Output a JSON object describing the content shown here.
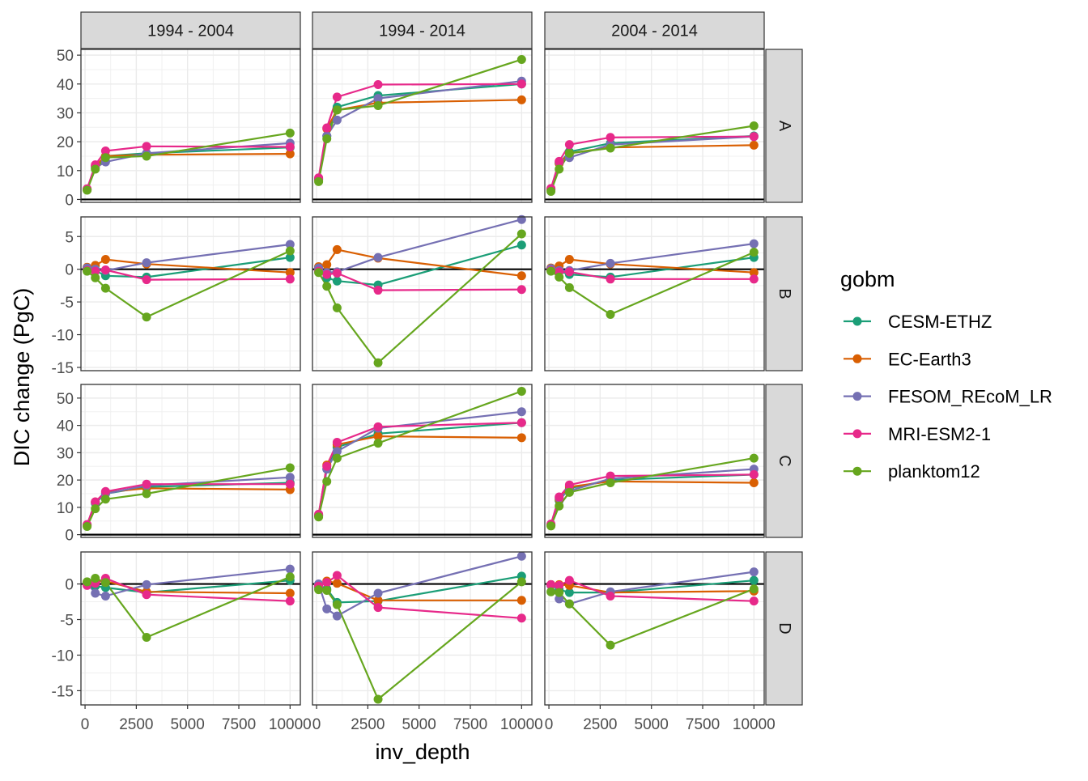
{
  "chart_data": {
    "type": "line",
    "facet_columns": [
      "1994 - 2004",
      "1994 - 2014",
      "2004 - 2014"
    ],
    "facet_rows": [
      "A",
      "B",
      "C",
      "D"
    ],
    "xlabel": "inv_depth",
    "ylabel": "DIC change (PgC)",
    "x_ticks": [
      "0",
      "2500",
      "5000",
      "7500",
      "10000"
    ],
    "xlim": [
      -200,
      10500
    ],
    "x": [
      100,
      500,
      1000,
      3000,
      10000
    ],
    "grid": true,
    "hline_y": 0,
    "legend": {
      "title": "gobm",
      "position": "right",
      "entries": [
        {
          "name": "CESM-ETHZ",
          "color": "#1B9E77"
        },
        {
          "name": "EC-Earth3",
          "color": "#D95F02"
        },
        {
          "name": "FESOM_REcoM_LR",
          "color": "#7570B3"
        },
        {
          "name": "MRI-ESM2-1",
          "color": "#E7298A"
        },
        {
          "name": "planktom12",
          "color": "#66A61E"
        }
      ]
    },
    "rows": [
      {
        "label": "A",
        "ylim": [
          -1,
          52
        ],
        "y_ticks": [
          0,
          10,
          20,
          30,
          40,
          50
        ],
        "panels": [
          {
            "column": "1994 - 2004",
            "series": [
              {
                "name": "CESM-ETHZ",
                "values": [
                  3.5,
                  11.5,
                  15,
                  16,
                  18
                ]
              },
              {
                "name": "EC-Earth3",
                "values": [
                  3.3,
                  11.5,
                  15,
                  15.5,
                  15.8
                ]
              },
              {
                "name": "FESOM_REcoM_LR",
                "values": [
                  3.5,
                  11,
                  13,
                  16,
                  19.5
                ]
              },
              {
                "name": "MRI-ESM2-1",
                "values": [
                  3.7,
                  12,
                  16.8,
                  18.4,
                  18.2
                ]
              },
              {
                "name": "planktom12",
                "values": [
                  3.2,
                  10.5,
                  14.5,
                  15,
                  23
                ]
              }
            ]
          },
          {
            "column": "1994 - 2014",
            "series": [
              {
                "name": "CESM-ETHZ",
                "values": [
                  7,
                  22,
                  32,
                  36,
                  40
                ]
              },
              {
                "name": "EC-Earth3",
                "values": [
                  6.8,
                  24.5,
                  31,
                  33.5,
                  34.5
                ]
              },
              {
                "name": "FESOM_REcoM_LR",
                "values": [
                  7.2,
                  22,
                  27.5,
                  35,
                  41
                ]
              },
              {
                "name": "MRI-ESM2-1",
                "values": [
                  7.5,
                  24.8,
                  35.5,
                  39.8,
                  40
                ]
              },
              {
                "name": "planktom12",
                "values": [
                  6.2,
                  21,
                  31,
                  32.5,
                  48.5
                ]
              }
            ]
          },
          {
            "column": "2004 - 2014",
            "series": [
              {
                "name": "CESM-ETHZ",
                "values": [
                  3.5,
                  12.5,
                  16.5,
                  19.5,
                  22
                ]
              },
              {
                "name": "EC-Earth3",
                "values": [
                  3.3,
                  12.5,
                  16,
                  18,
                  18.8
                ]
              },
              {
                "name": "FESOM_REcoM_LR",
                "values": [
                  3.6,
                  13,
                  14.5,
                  19,
                  21.8
                ]
              },
              {
                "name": "MRI-ESM2-1",
                "values": [
                  3.8,
                  13.2,
                  19,
                  21.5,
                  21.8
                ]
              },
              {
                "name": "planktom12",
                "values": [
                  2.8,
                  10.5,
                  16,
                  17.8,
                  25.5
                ]
              }
            ]
          }
        ]
      },
      {
        "label": "B",
        "ylim": [
          -15.5,
          8
        ],
        "y_ticks": [
          -15,
          -10,
          -5,
          0,
          5
        ],
        "panels": [
          {
            "column": "1994 - 2004",
            "series": [
              {
                "name": "CESM-ETHZ",
                "values": [
                  0,
                  -0.2,
                  -1,
                  -1.2,
                  1.8
                ]
              },
              {
                "name": "EC-Earth3",
                "values": [
                  0.3,
                  0.6,
                  1.5,
                  0.8,
                  -0.5
                ]
              },
              {
                "name": "FESOM_REcoM_LR",
                "values": [
                  0.2,
                  0,
                  -0.2,
                  1,
                  3.8
                ]
              },
              {
                "name": "MRI-ESM2-1",
                "values": [
                  -0.2,
                  -0.3,
                  -0.1,
                  -1.6,
                  -1.5
                ]
              },
              {
                "name": "planktom12",
                "values": [
                  -0.3,
                  -1.3,
                  -2.9,
                  -7.3,
                  2.8
                ]
              }
            ]
          },
          {
            "column": "1994 - 2014",
            "series": [
              {
                "name": "CESM-ETHZ",
                "values": [
                  0,
                  -1.3,
                  -1.8,
                  -2.4,
                  3.7
                ]
              },
              {
                "name": "EC-Earth3",
                "values": [
                  0.4,
                  0.7,
                  3,
                  1.7,
                  -1
                ]
              },
              {
                "name": "FESOM_REcoM_LR",
                "values": [
                  0.2,
                  -0.5,
                  -0.4,
                  1.8,
                  7.6
                ]
              },
              {
                "name": "MRI-ESM2-1",
                "values": [
                  -0.3,
                  -0.8,
                  -0.6,
                  -3.2,
                  -3.1
                ]
              },
              {
                "name": "planktom12",
                "values": [
                  -0.5,
                  -2.6,
                  -5.9,
                  -14.3,
                  5.4
                ]
              }
            ]
          },
          {
            "column": "2004 - 2014",
            "series": [
              {
                "name": "CESM-ETHZ",
                "values": [
                  0,
                  -0.3,
                  -0.8,
                  -1.2,
                  1.8
                ]
              },
              {
                "name": "EC-Earth3",
                "values": [
                  0.2,
                  0.5,
                  1.5,
                  0.8,
                  -0.5
                ]
              },
              {
                "name": "FESOM_REcoM_LR",
                "values": [
                  0.1,
                  -0.2,
                  -0.2,
                  0.9,
                  3.9
                ]
              },
              {
                "name": "MRI-ESM2-1",
                "values": [
                  -0.2,
                  -0.4,
                  -0.4,
                  -1.5,
                  -1.5
                ]
              },
              {
                "name": "planktom12",
                "values": [
                  -0.3,
                  -1.2,
                  -2.8,
                  -6.9,
                  2.6
                ]
              }
            ]
          }
        ]
      },
      {
        "label": "C",
        "ylim": [
          -1,
          55
        ],
        "y_ticks": [
          0,
          10,
          20,
          30,
          40,
          50
        ],
        "panels": [
          {
            "column": "1994 - 2004",
            "series": [
              {
                "name": "CESM-ETHZ",
                "values": [
                  3.5,
                  11.5,
                  15,
                  17.5,
                  19
                ]
              },
              {
                "name": "EC-Earth3",
                "values": [
                  3.3,
                  12,
                  15.5,
                  17,
                  16.5
                ]
              },
              {
                "name": "FESOM_REcoM_LR",
                "values": [
                  3.6,
                  11.8,
                  15,
                  18,
                  21
                ]
              },
              {
                "name": "MRI-ESM2-1",
                "values": [
                  3.7,
                  12,
                  15.8,
                  18.5,
                  18.5
                ]
              },
              {
                "name": "planktom12",
                "values": [
                  3,
                  9.5,
                  13,
                  15,
                  24.5
                ]
              }
            ]
          },
          {
            "column": "1994 - 2014",
            "series": [
              {
                "name": "CESM-ETHZ",
                "values": [
                  7,
                  24,
                  32,
                  37,
                  41
                ]
              },
              {
                "name": "EC-Earth3",
                "values": [
                  7,
                  25.5,
                  33,
                  36,
                  35.5
                ]
              },
              {
                "name": "FESOM_REcoM_LR",
                "values": [
                  7.2,
                  24,
                  30.5,
                  39,
                  45
                ]
              },
              {
                "name": "MRI-ESM2-1",
                "values": [
                  7.5,
                  25,
                  33.8,
                  39.5,
                  41
                ]
              },
              {
                "name": "planktom12",
                "values": [
                  6.5,
                  19.5,
                  28,
                  33.5,
                  52.5
                ]
              }
            ]
          },
          {
            "column": "2004 - 2014",
            "series": [
              {
                "name": "CESM-ETHZ",
                "values": [
                  3.5,
                  12.5,
                  17,
                  20,
                  22
                ]
              },
              {
                "name": "EC-Earth3",
                "values": [
                  3.4,
                  13,
                  17.5,
                  19.5,
                  19
                ]
              },
              {
                "name": "FESOM_REcoM_LR",
                "values": [
                  3.6,
                  13.5,
                  16,
                  20.5,
                  24
                ]
              },
              {
                "name": "MRI-ESM2-1",
                "values": [
                  3.9,
                  13.8,
                  18.2,
                  21.5,
                  22
                ]
              },
              {
                "name": "planktom12",
                "values": [
                  3.2,
                  10.5,
                  15.5,
                  19,
                  28
                ]
              }
            ]
          }
        ]
      },
      {
        "label": "D",
        "ylim": [
          -17,
          4.5
        ],
        "y_ticks": [
          -15,
          -10,
          -5,
          0
        ],
        "panels": [
          {
            "column": "1994 - 2004",
            "series": [
              {
                "name": "CESM-ETHZ",
                "values": [
                  0.1,
                  -0.3,
                  -0.5,
                  -1.2,
                  0.5
                ]
              },
              {
                "name": "EC-Earth3",
                "values": [
                  0.2,
                  0.3,
                  0.4,
                  -1.1,
                  -1.3
                ]
              },
              {
                "name": "FESOM_REcoM_LR",
                "values": [
                  0.1,
                  -1.3,
                  -1.7,
                  -0.1,
                  2.1
                ]
              },
              {
                "name": "MRI-ESM2-1",
                "values": [
                  -0.2,
                  0.1,
                  0.8,
                  -1.5,
                  -2.4
                ]
              },
              {
                "name": "planktom12",
                "values": [
                  0.3,
                  0.8,
                  0.2,
                  -7.5,
                  1
                ]
              }
            ]
          },
          {
            "column": "1994 - 2014",
            "series": [
              {
                "name": "CESM-ETHZ",
                "values": [
                  -0.5,
                  -0.7,
                  -2.6,
                  -2.4,
                  1.1
                ]
              },
              {
                "name": "EC-Earth3",
                "values": [
                  -0.1,
                  0.4,
                  0.1,
                  -2.3,
                  -2.3
                ]
              },
              {
                "name": "FESOM_REcoM_LR",
                "values": [
                  0,
                  -3.5,
                  -4.5,
                  -1.3,
                  3.9
                ]
              },
              {
                "name": "MRI-ESM2-1",
                "values": [
                  -0.3,
                  0.2,
                  1.2,
                  -3.3,
                  -4.8
                ]
              },
              {
                "name": "planktom12",
                "values": [
                  -0.8,
                  -0.9,
                  -2.9,
                  -16.2,
                  0.3
                ]
              }
            ]
          },
          {
            "column": "2004 - 2014",
            "series": [
              {
                "name": "CESM-ETHZ",
                "values": [
                  -0.1,
                  -0.8,
                  -1.2,
                  -1.2,
                  0.5
                ]
              },
              {
                "name": "EC-Earth3",
                "values": [
                  -0.1,
                  -0.1,
                  -0.2,
                  -1.2,
                  -1
                ]
              },
              {
                "name": "FESOM_REcoM_LR",
                "values": [
                  -0.2,
                  -2.1,
                  -2.8,
                  -1.1,
                  1.7
                ]
              },
              {
                "name": "MRI-ESM2-1",
                "values": [
                  -0.1,
                  -0.2,
                  0.5,
                  -1.7,
                  -2.4
                ]
              },
              {
                "name": "planktom12",
                "values": [
                  -1.1,
                  -1.2,
                  -2.8,
                  -8.6,
                  -0.7
                ]
              }
            ]
          }
        ]
      }
    ]
  }
}
